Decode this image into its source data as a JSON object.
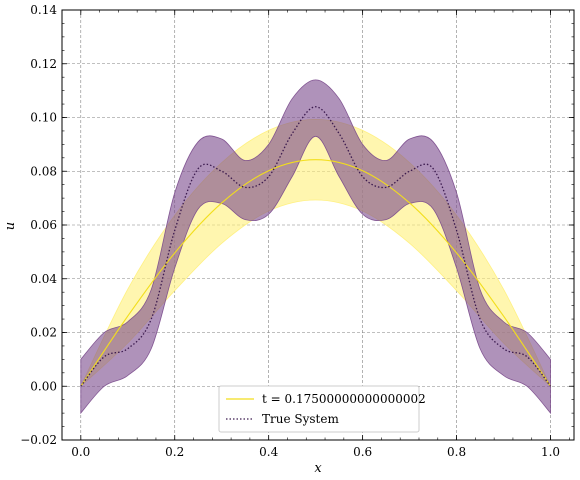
{
  "chart_data": {
    "type": "line",
    "xlabel": "x",
    "ylabel": "u",
    "xlim": [
      -0.04,
      1.05
    ],
    "ylim": [
      -0.02,
      0.14
    ],
    "x_ticks": [
      0.0,
      0.2,
      0.4,
      0.6,
      0.8,
      1.0
    ],
    "x_tick_labels": [
      "0.0",
      "0.2",
      "0.4",
      "0.6",
      "0.8",
      "1.0"
    ],
    "y_ticks": [
      -0.02,
      0.0,
      0.02,
      0.04,
      0.06,
      0.08,
      0.1,
      0.12,
      0.14
    ],
    "y_tick_labels": [
      "−0.02",
      "0.00",
      "0.02",
      "0.04",
      "0.06",
      "0.08",
      "0.10",
      "0.12",
      "0.14"
    ],
    "grid": true,
    "legend_position": "bottom-center",
    "series": [
      {
        "name": "t = 0.17500000000000002",
        "style": "solid",
        "color": "#f2de1c",
        "band_color": "#fff07a",
        "x": [
          0.0,
          0.1,
          0.2,
          0.3,
          0.4,
          0.5,
          0.6,
          0.7,
          0.8,
          0.9,
          1.0
        ],
        "y": [
          0.0,
          0.0261,
          0.0496,
          0.0682,
          0.0802,
          0.0843,
          0.0802,
          0.0682,
          0.0496,
          0.0261,
          0.0
        ],
        "band_lower": [
          0.0,
          0.0161,
          0.0356,
          0.0532,
          0.0652,
          0.0693,
          0.0652,
          0.0532,
          0.0356,
          0.0161,
          0.0
        ],
        "band_upper": [
          0.0,
          0.0361,
          0.0636,
          0.0832,
          0.0952,
          0.0993,
          0.0952,
          0.0832,
          0.0636,
          0.0361,
          0.0
        ]
      },
      {
        "name": "True System",
        "style": "dotted",
        "color": "#3b1a4e",
        "band_color": "#7a4a8c",
        "x": [
          0.0,
          0.05,
          0.1,
          0.15,
          0.2,
          0.25,
          0.3,
          0.35,
          0.4,
          0.45,
          0.5,
          0.55,
          0.6,
          0.65,
          0.7,
          0.75,
          0.8,
          0.85,
          0.9,
          0.95,
          1.0
        ],
        "y": [
          0.0,
          0.011,
          0.014,
          0.025,
          0.058,
          0.081,
          0.08,
          0.074,
          0.078,
          0.094,
          0.104,
          0.094,
          0.078,
          0.074,
          0.08,
          0.081,
          0.058,
          0.025,
          0.014,
          0.011,
          0.0
        ],
        "band_lower": [
          -0.01,
          0.0,
          0.004,
          0.014,
          0.044,
          0.066,
          0.068,
          0.062,
          0.064,
          0.078,
          0.093,
          0.078,
          0.064,
          0.062,
          0.068,
          0.066,
          0.044,
          0.014,
          0.004,
          0.0,
          -0.01
        ],
        "band_upper": [
          0.01,
          0.02,
          0.024,
          0.036,
          0.072,
          0.091,
          0.092,
          0.084,
          0.09,
          0.107,
          0.114,
          0.107,
          0.09,
          0.084,
          0.092,
          0.091,
          0.072,
          0.036,
          0.024,
          0.02,
          0.01
        ]
      }
    ]
  }
}
